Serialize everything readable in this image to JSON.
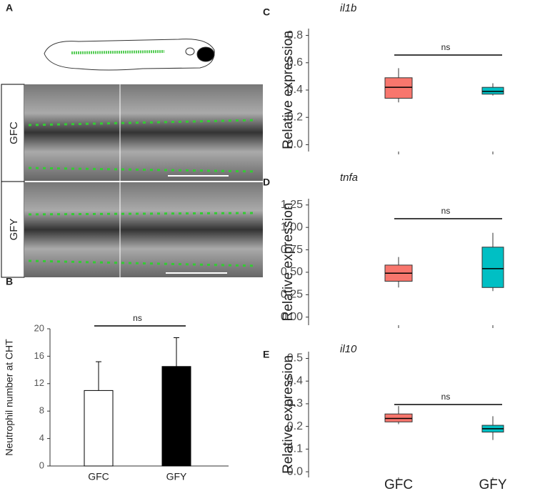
{
  "panels": {
    "A": "A",
    "B": "B",
    "C": "C",
    "D": "D",
    "E": "E"
  },
  "image_labels": [
    "GFC",
    "GFY"
  ],
  "chart_data": [
    {
      "type": "bar",
      "ylabel": "Neutrophil number at CHT",
      "categories": [
        "GFC",
        "GFY"
      ],
      "values": [
        11,
        14.5
      ],
      "errors": [
        4.2,
        4.2
      ],
      "colors": [
        "#ffffff",
        "#000000"
      ],
      "ylim": [
        0,
        20
      ],
      "yticks": [
        0,
        4,
        8,
        12,
        16,
        20
      ],
      "annotation": "ns"
    },
    {
      "type": "box",
      "title": "il1b",
      "ylabel": "Relative expression",
      "values": [
        {
          "low": 0.31,
          "q1": 0.34,
          "median": 0.42,
          "q3": 0.49,
          "high": 0.56
        },
        {
          "low": 0.36,
          "q1": 0.37,
          "median": 0.39,
          "q3": 0.42,
          "high": 0.45
        }
      ],
      "colors": [
        "#f8766d",
        "#00bfc4"
      ],
      "ylim": [
        -0.05,
        0.85
      ],
      "yticks": [
        {
          "value": 0,
          "label": "0.0"
        },
        0.2,
        0.4,
        0.6,
        0.8
      ],
      "annotation": "ns"
    },
    {
      "type": "box",
      "title": "tnfa",
      "ylabel": "Relative expression",
      "values": [
        {
          "low": 0.33,
          "q1": 0.4,
          "median": 0.49,
          "q3": 0.58,
          "high": 0.67
        },
        {
          "low": 0.29,
          "q1": 0.33,
          "median": 0.54,
          "q3": 0.78,
          "high": 0.94
        }
      ],
      "colors": [
        "#f8766d",
        "#00bfc4"
      ],
      "ylim": [
        -0.09,
        1.32
      ],
      "yticks": [
        {
          "value": 0,
          "label": "0.00"
        },
        0.25,
        {
          "value": 0.5,
          "label": "0.50"
        },
        0.75,
        {
          "value": 1,
          "label": "1.00"
        },
        1.25
      ],
      "annotation": "ns"
    },
    {
      "type": "box",
      "title": "il10",
      "ylabel": "Relative expression",
      "categories": [
        "GFC",
        "GFY"
      ],
      "values": [
        {
          "low": 0.21,
          "q1": 0.22,
          "median": 0.235,
          "q3": 0.255,
          "high": 0.29
        },
        {
          "low": 0.14,
          "q1": 0.175,
          "median": 0.19,
          "q3": 0.205,
          "high": 0.245
        }
      ],
      "colors": [
        "#f8766d",
        "#00bfc4"
      ],
      "ylim": [
        -0.025,
        0.53
      ],
      "yticks": [
        {
          "value": 0,
          "label": "0.0"
        },
        0.1,
        0.2,
        0.3,
        0.4,
        0.5
      ],
      "annotation": "ns"
    }
  ]
}
